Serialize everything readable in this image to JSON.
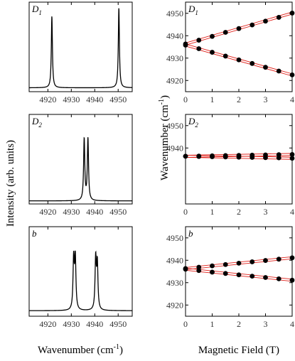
{
  "figure": {
    "left_ylabel": "Intensity (arb. units)",
    "left_xlabel": "Wavenumber (cm",
    "left_xlabel_sup": "-1",
    "left_xlabel_close": ")",
    "right_ylabel": "Wavenumber (cm",
    "right_ylabel_sup": "-1",
    "right_ylabel_close": ")",
    "right_xlabel": "Magnetic Field (T)"
  },
  "chart_data": [
    {
      "type": "line",
      "panel": "D1 spectrum",
      "label_main": "D",
      "label_sub": "1",
      "xlim": [
        4912,
        4956
      ],
      "xticks": [
        4920,
        4930,
        4940,
        4950
      ],
      "baseline": 0.03,
      "peaks": [
        {
          "center": 4921.7,
          "width": 0.28,
          "height": 0.87
        },
        {
          "center": 4950.3,
          "width": 0.28,
          "height": 0.97
        }
      ]
    },
    {
      "type": "line",
      "panel": "D2 spectrum",
      "label_main": "D",
      "label_sub": "2",
      "xlim": [
        4912,
        4956
      ],
      "xticks": [
        4920,
        4930,
        4940,
        4950
      ],
      "baseline": 0.02,
      "peaks": [
        {
          "center": 4935.5,
          "width": 0.3,
          "height": 0.75
        },
        {
          "center": 4937.1,
          "width": 0.3,
          "height": 0.75
        }
      ]
    },
    {
      "type": "line",
      "panel": "b spectrum",
      "label_main": "b",
      "label_sub": "",
      "xlim": [
        4912,
        4956
      ],
      "xticks": [
        4920,
        4930,
        4940,
        4950
      ],
      "baseline": 0.05,
      "peaks": [
        {
          "center": 4931.0,
          "width": 0.32,
          "height": 0.62
        },
        {
          "center": 4931.7,
          "width": 0.32,
          "height": 0.62
        },
        {
          "center": 4940.4,
          "width": 0.32,
          "height": 0.62
        },
        {
          "center": 4941.1,
          "width": 0.32,
          "height": 0.55
        }
      ]
    },
    {
      "type": "scatter",
      "panel": "D1 Zeeman",
      "label_main": "D",
      "label_sub": "1",
      "xlim": [
        0,
        4
      ],
      "ylim": [
        4915,
        4955
      ],
      "xticks": [
        0,
        1,
        2,
        3,
        4
      ],
      "yticks": [
        4920,
        4930,
        4940,
        4950
      ],
      "x": [
        0,
        0.5,
        1,
        1.5,
        2,
        2.5,
        3,
        3.5,
        4
      ],
      "series": [
        {
          "values": [
            4936.3,
            4938.0,
            4939.7,
            4941.5,
            4943.2,
            4944.8,
            4946.5,
            4948.2,
            4950.1
          ]
        },
        {
          "values": [
            4935.8,
            4934.2,
            4932.6,
            4930.9,
            4929.2,
            4927.6,
            4925.9,
            4924.2,
            4922.5
          ]
        }
      ]
    },
    {
      "type": "scatter",
      "panel": "D2 Zeeman",
      "label_main": "D",
      "label_sub": "2",
      "xlim": [
        0,
        4
      ],
      "ylim": [
        4915,
        4955
      ],
      "xticks": [
        0,
        1,
        2,
        3,
        4
      ],
      "yticks": [
        4940,
        4950
      ],
      "x": [
        0,
        0.5,
        1,
        1.5,
        2,
        2.5,
        3,
        3.5,
        4
      ],
      "series": [
        {
          "values": [
            4936.3,
            4936.4,
            4936.5,
            4936.6,
            4936.7,
            4936.8,
            4936.9,
            4937.0,
            4937.1
          ]
        },
        {
          "values": [
            4936.3,
            4936.2,
            4936.1,
            4936.0,
            4935.9,
            4935.8,
            4935.7,
            4935.6,
            4935.4
          ]
        }
      ]
    },
    {
      "type": "scatter",
      "panel": "b Zeeman",
      "label_main": "b",
      "label_sub": "",
      "xlim": [
        0,
        4
      ],
      "ylim": [
        4915,
        4955
      ],
      "xticks": [
        0,
        1,
        2,
        3,
        4
      ],
      "yticks": [
        4920,
        4930,
        4940,
        4950
      ],
      "x": [
        0,
        0.5,
        1,
        1.5,
        2,
        2.5,
        3,
        3.5,
        4
      ],
      "series": [
        {
          "values": [
            4936.3,
            4936.9,
            4937.5,
            4938.1,
            4938.7,
            4939.3,
            4939.9,
            4940.5,
            4941.1
          ]
        },
        {
          "values": [
            4936.0,
            4935.4,
            4934.7,
            4934.1,
            4933.5,
            4932.9,
            4932.3,
            4931.7,
            4931.1
          ]
        }
      ]
    }
  ]
}
